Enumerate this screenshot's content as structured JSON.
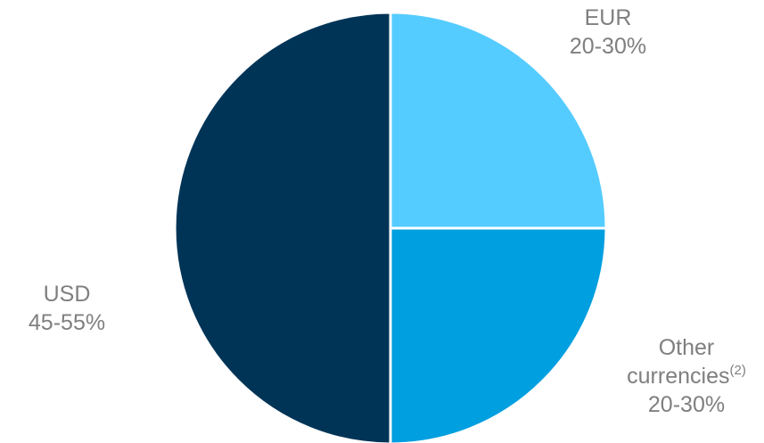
{
  "chart_data": {
    "type": "pie",
    "slices": [
      {
        "name": "EUR",
        "range_text": "20-30%",
        "value": 25,
        "color": "#55ccff"
      },
      {
        "name": "Other currencies",
        "superscript": "(2)",
        "range_text": "20-30%",
        "value": 25,
        "color": "#009fe0"
      },
      {
        "name": "USD",
        "range_text": "45-55%",
        "value": 50,
        "color": "#003457"
      }
    ],
    "start_angle": "top (12 o'clock), clockwise",
    "legend": "none",
    "label_color": "#7f7f7f",
    "separator_color": "#ffffff"
  },
  "labels": {
    "eur": {
      "name": "EUR",
      "value": "20-30%"
    },
    "other": {
      "name_line1": "Other",
      "name_line2": "currencies",
      "superscript": "(2)",
      "value": "20-30%"
    },
    "usd": {
      "name": "USD",
      "value": "45-55%"
    }
  }
}
